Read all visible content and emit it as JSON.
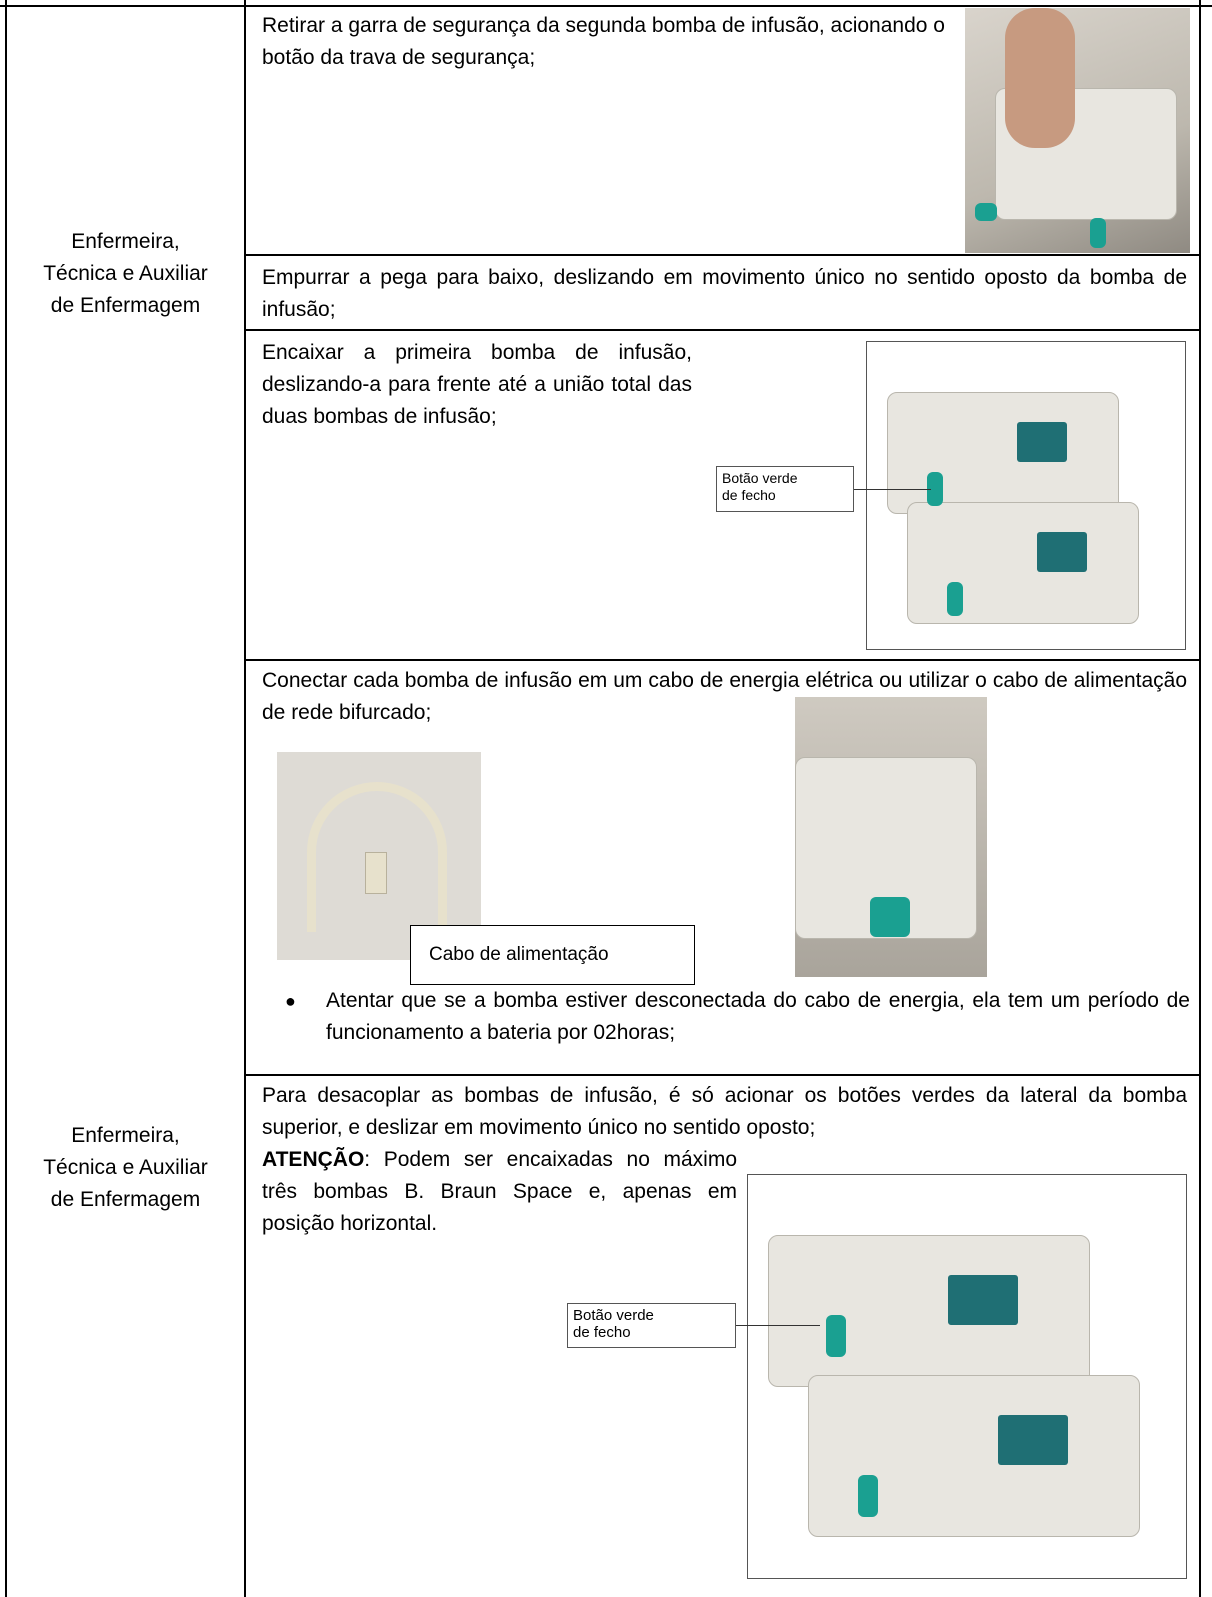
{
  "left_column": [
    "Enfermeira,\nTécnica e Auxiliar\nde Enfermagem",
    "Enfermeira,\nTécnica e Auxiliar\nde Enfermagem"
  ],
  "steps": [
    {
      "text": "Retirar a garra de segurança da segunda bomba de infusão, acionando o botão da trava de segurança;"
    },
    {
      "text": "Empurrar a pega para baixo, deslizando em movimento único no sentido oposto da bomba de infusão;"
    },
    {
      "text": "Encaixar a primeira bomba de infusão, deslizando-a para frente até a união total das duas bombas de infusão;",
      "callout": "Botão verde\nde fecho"
    },
    {
      "text": "Conectar cada bomba de infusão em um cabo de energia elétrica ou utilizar o cabo de alimentação de rede bifurcado;",
      "callout": "Cabo de alimentação",
      "bullet": "Atentar que se a bomba estiver desconectada do cabo de energia, ela tem um período de funcionamento a bateria por 02horas;"
    },
    {
      "text": "Para desacoplar as bombas de infusão, é só acionar os botões verdes da lateral da bomba superior, e deslizar em movimento único no sentido oposto;",
      "attention_label": "ATENÇÃO",
      "attention_text": ": Podem ser encaixadas no máximo três bombas B. Braun Space e, apenas em posição horizontal.",
      "callout": "Botão verde\nde fecho"
    }
  ]
}
